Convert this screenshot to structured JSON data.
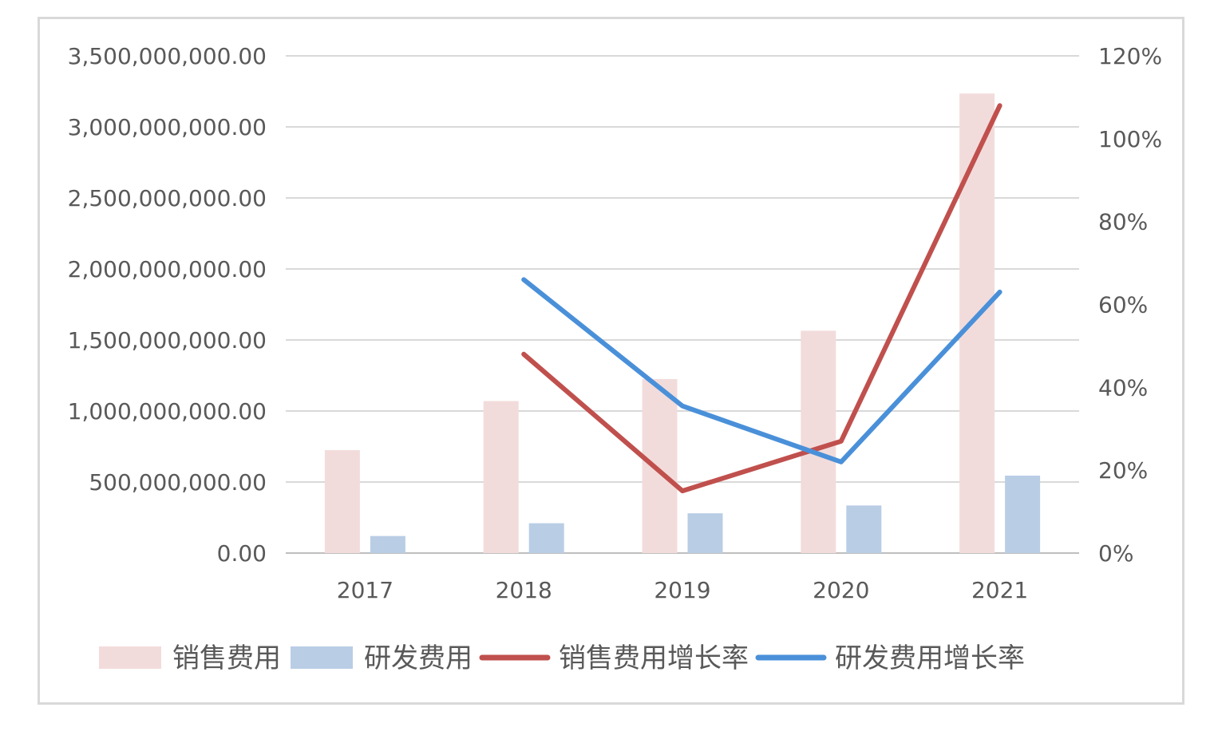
{
  "chart_data": {
    "type": "bar",
    "categories": [
      "2017",
      "2018",
      "2019",
      "2020",
      "2021"
    ],
    "series": [
      {
        "name": "销售费用",
        "kind": "bar",
        "axis": "left",
        "color": "#f2dcdb",
        "values": [
          725000000,
          1070000000,
          1225000000,
          1565000000,
          3235000000
        ]
      },
      {
        "name": "研发费用",
        "kind": "bar",
        "axis": "left",
        "color": "#b9cde5",
        "values": [
          120000000,
          210000000,
          280000000,
          335000000,
          545000000
        ]
      },
      {
        "name": "销售费用增长率",
        "kind": "line",
        "axis": "right",
        "color": "#c0504d",
        "values": [
          null,
          0.48,
          0.15,
          0.27,
          1.08
        ]
      },
      {
        "name": "研发费用增长率",
        "kind": "line",
        "axis": "right",
        "color": "#4a90d9",
        "values": [
          null,
          0.66,
          0.355,
          0.22,
          0.63
        ]
      }
    ],
    "y_left": {
      "ylim": [
        0,
        3500000000
      ],
      "ticks": [
        "0.00",
        "500,000,000.00",
        "1,000,000,000.00",
        "1,500,000,000.00",
        "2,000,000,000.00",
        "2,500,000,000.00",
        "3,000,000,000.00",
        "3,500,000,000.00"
      ]
    },
    "y_right": {
      "ylim": [
        0,
        1.2
      ],
      "ticks": [
        "0%",
        "20%",
        "40%",
        "60%",
        "80%",
        "100%",
        "120%"
      ]
    },
    "grid": true,
    "legend": "bottom"
  }
}
